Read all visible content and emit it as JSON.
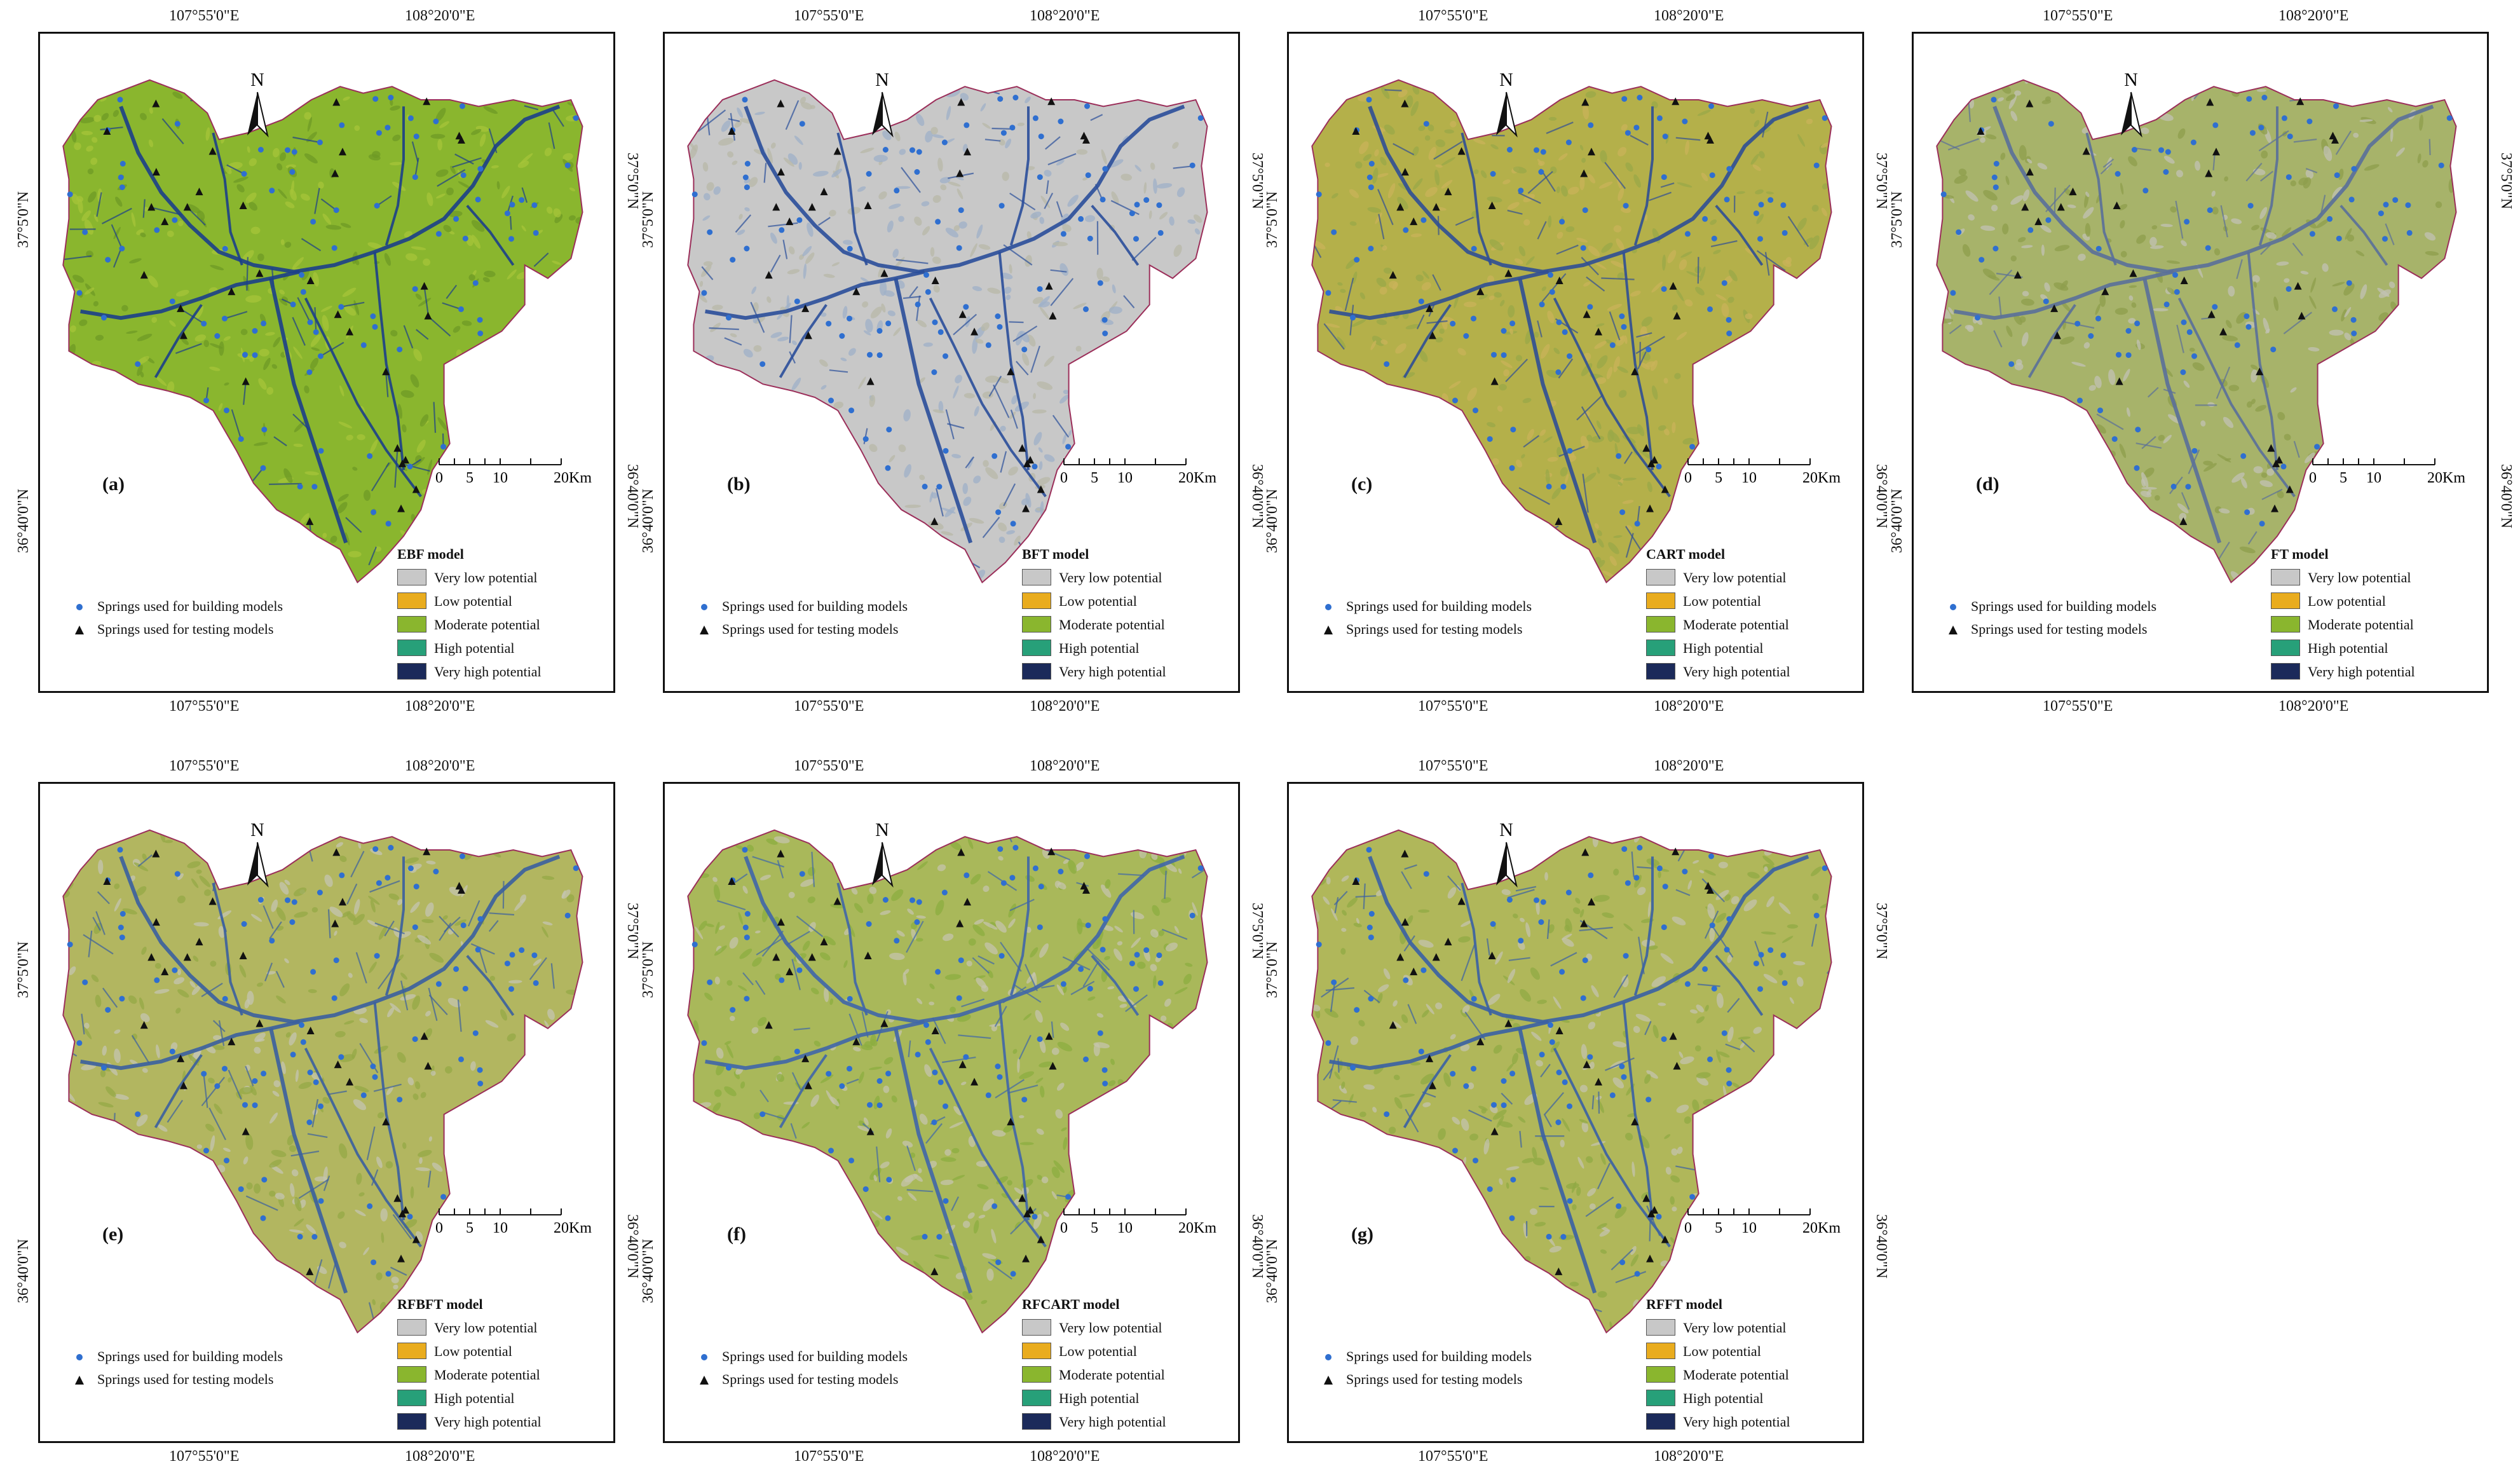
{
  "legend": {
    "classes": [
      {
        "label": "Very low potential",
        "color": "#c8c8c8"
      },
      {
        "label": "Low potential",
        "color": "#e9ac1e"
      },
      {
        "label": "Moderate potential",
        "color": "#8ab62e"
      },
      {
        "label": "High potential",
        "color": "#27a079"
      },
      {
        "label": "Very high potential",
        "color": "#1b2a5a"
      }
    ],
    "springs": [
      {
        "label": "Springs used for building models",
        "marker": "blue-dot",
        "color": "#2f6fd0"
      },
      {
        "label": "Springs used for testing models",
        "marker": "black-triangle",
        "color": "#111111"
      }
    ]
  },
  "graticule": {
    "lon": [
      "107°55'0\"E",
      "108°20'0\"E"
    ],
    "lat": [
      "37°5'0\"N",
      "36°40'0\"N"
    ]
  },
  "scalebar": {
    "ticks": [
      "0",
      "5",
      "10",
      "20"
    ],
    "unit": "Km"
  },
  "north_label": "N",
  "panels": [
    {
      "letter": "(a)",
      "model": "EBF model",
      "palette": [
        "#8ab62e",
        "#1b3f8a",
        "#a6c43a",
        "#6d9a26"
      ]
    },
    {
      "letter": "(b)",
      "model": "BFT model",
      "palette": [
        "#c8c8c8",
        "#2a4e9a",
        "#9fb0c8",
        "#b8b8a8"
      ]
    },
    {
      "letter": "(c)",
      "model": "CART model",
      "palette": [
        "#b4b04a",
        "#2f4f95",
        "#c9b35a",
        "#9aa848"
      ]
    },
    {
      "letter": "(d)",
      "model": "FT model",
      "palette": [
        "#a7b36a",
        "#5a6f9a",
        "#c2c2b4",
        "#8e9e4c"
      ]
    },
    {
      "letter": "(e)",
      "model": "RFBFT model",
      "palette": [
        "#b2b660",
        "#3a5fa0",
        "#c4c4b0",
        "#94a846"
      ]
    },
    {
      "letter": "(f)",
      "model": "RFCART model",
      "palette": [
        "#a9b85a",
        "#3f66a8",
        "#c6c4ac",
        "#8cae40"
      ]
    },
    {
      "letter": "(g)",
      "model": "RFFT model",
      "palette": [
        "#b0b75a",
        "#3a60a4",
        "#c4c3ae",
        "#90aa44"
      ]
    }
  ]
}
